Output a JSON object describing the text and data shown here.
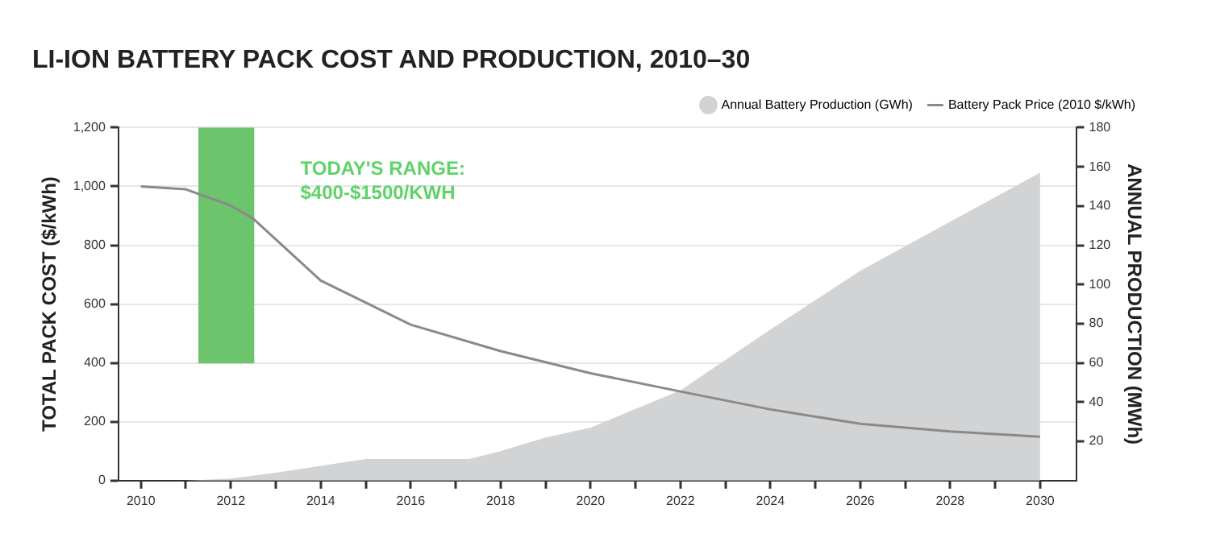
{
  "chart_data": {
    "type": "line",
    "title": "LI-ION BATTERY PACK COST AND PRODUCTION, 2010–30",
    "ylabel": "TOTAL PACK COST ($/kWh)",
    "y2label": "ANNUAL PRODUCTION (MWh)",
    "xlim": [
      2009.5,
      2030.8
    ],
    "xticks": [
      2010,
      {
        "value": 2011,
        "label": null
      },
      2012,
      {
        "value": 2013,
        "label": null
      },
      2014,
      {
        "value": 2015,
        "label": null
      },
      2016,
      {
        "value": 2017,
        "label": null
      },
      2018,
      {
        "value": 2019,
        "label": null
      },
      2020,
      {
        "value": 2021,
        "label": null
      },
      2022,
      {
        "value": 2023,
        "label": null
      },
      2024,
      {
        "value": 2025,
        "label": null
      },
      2026,
      {
        "value": 2027,
        "label": null
      },
      2028,
      {
        "value": 2029,
        "label": null
      },
      2030
    ],
    "ylim": [
      0,
      1200
    ],
    "yticks": [
      0,
      200,
      400,
      600,
      800,
      {
        "value": 1000,
        "label": "1,000"
      },
      {
        "value": 1200,
        "label": "1,200"
      }
    ],
    "y2lim": [
      0,
      180
    ],
    "y2ticks": [
      20,
      40,
      60,
      80,
      100,
      120,
      140,
      160,
      180
    ],
    "grid": "y",
    "legend": "top right",
    "marker": "none",
    "series": [
      {
        "name": "Annual Battery Production (GWh)",
        "type": "area",
        "axis": "y2",
        "color": "#d1d3d4",
        "x": [
          2010,
          2011,
          2012,
          2013,
          2015,
          2017.3,
          2018,
          2019,
          2020,
          2022,
          2024,
          2026,
          2028,
          2030
        ],
        "values": [
          0,
          0,
          1,
          4,
          11,
          11,
          15,
          22,
          27,
          46,
          77,
          107,
          132,
          157
        ]
      },
      {
        "name": "Battery Pack Price (2010 $/kWh)",
        "color": "#8a8a8a",
        "x": [
          2010,
          2011,
          2012,
          2012.5,
          2014,
          2016,
          2018,
          2020,
          2022,
          2024,
          2026,
          2028,
          2030
        ],
        "values": [
          1000,
          990,
          935,
          890,
          680,
          530,
          440,
          365,
          303,
          242,
          193,
          167,
          149
        ]
      },
      {
        "type": "bar",
        "color": "#6cc46c",
        "x": [
          2011.9
        ],
        "base": [
          400
        ],
        "values": [
          800
        ]
      }
    ],
    "annotations": [
      "TODAY'S RANGE:",
      "$400-$1500/KWH"
    ]
  }
}
